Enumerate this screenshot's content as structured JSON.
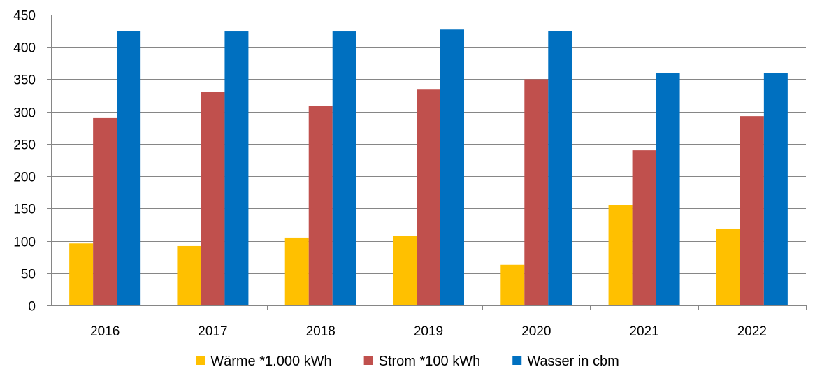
{
  "chart_data": {
    "type": "bar",
    "categories": [
      "2016",
      "2017",
      "2018",
      "2019",
      "2020",
      "2021",
      "2022"
    ],
    "series": [
      {
        "name": "Wärme *1.000 kWh",
        "color": "#FFC000",
        "values": [
          96,
          92,
          105,
          108,
          63,
          155,
          119
        ]
      },
      {
        "name": "Strom *100 kWh",
        "color": "#C0504D",
        "values": [
          290,
          330,
          309,
          334,
          350,
          240,
          293
        ]
      },
      {
        "name": "Wasser in cbm",
        "color": "#0070C0",
        "values": [
          425,
          424,
          424,
          427,
          425,
          360,
          360
        ]
      }
    ],
    "ylim": [
      0,
      450
    ],
    "yticks": [
      "0",
      "50",
      "100",
      "150",
      "200",
      "250",
      "300",
      "350",
      "400",
      "450"
    ],
    "title": "",
    "xlabel": "",
    "ylabel": "",
    "grid": "horizontal",
    "legend_position": "bottom"
  }
}
